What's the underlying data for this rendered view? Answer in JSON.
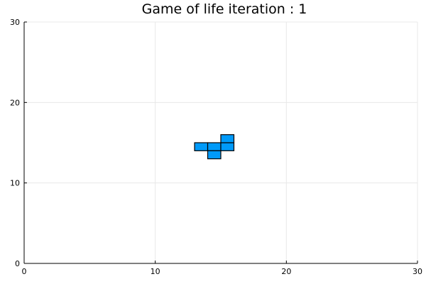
{
  "chart_data": {
    "type": "heatmap",
    "title": "Game of life iteration : 1",
    "xlabel": "",
    "ylabel": "",
    "xlim": [
      0,
      30
    ],
    "ylim": [
      0,
      30
    ],
    "xticks": [
      0,
      10,
      20,
      30
    ],
    "yticks": [
      0,
      10,
      20,
      30
    ],
    "xtick_labels": [
      "0",
      "10",
      "20",
      "30"
    ],
    "ytick_labels": [
      "0",
      "10",
      "20",
      "30"
    ],
    "grid": true,
    "legend": "none",
    "cell_color": "#009AF9",
    "live_cells": [
      {
        "x": 13,
        "y": 14
      },
      {
        "x": 14,
        "y": 14
      },
      {
        "x": 15,
        "y": 14
      },
      {
        "x": 14,
        "y": 13
      },
      {
        "x": 15,
        "y": 15
      }
    ]
  }
}
